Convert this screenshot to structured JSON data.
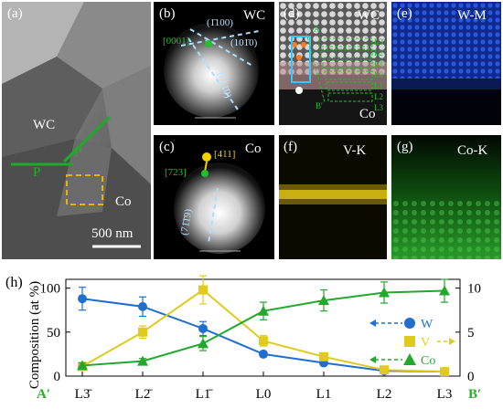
{
  "panels": {
    "a": {
      "tag": "(a)",
      "phase1": "WC",
      "phase2": "Co",
      "plane": "P",
      "plane2": "P",
      "scale": "500 nm"
    },
    "b": {
      "tag": "(b)",
      "phase": "WC",
      "zone": "[0001]",
      "dir1": "(1̄100)",
      "dir2": "(101̄0)",
      "dir3": "(011̄0)"
    },
    "c": {
      "tag": "(c)",
      "phase": "Co",
      "dir_yellow": "[411]",
      "dir_green": "[723]",
      "plane": "(71̄1̄9)"
    },
    "d": {
      "tag": "(d)",
      "phase1": "WC",
      "phase2": "Co",
      "pointA": "A",
      "pointB": "B'",
      "layers": [
        "L3̄",
        "L2̄",
        "L1̄",
        "L0",
        "L1",
        "L2",
        "L3"
      ]
    },
    "e": {
      "tag": "(e)",
      "title": "W-M"
    },
    "f": {
      "tag": "(f)",
      "title": "V-K"
    },
    "g": {
      "tag": "(g)",
      "title": "Co-K"
    },
    "h": {
      "tag": "(h)",
      "start": "A′",
      "end": "B′"
    }
  },
  "colors": {
    "w": "#1f6fd1",
    "v": "#e0cb1c",
    "co": "#22a82c",
    "green_label": "#22b022"
  },
  "chart_data": {
    "type": "line",
    "ylabel": "Composition (at %)",
    "categories": [
      "L3̄",
      "L2̄",
      "L1̄",
      "L0",
      "L1",
      "L2",
      "L3"
    ],
    "ylim_left": [
      0,
      110
    ],
    "ylim_right": [
      0,
      11
    ],
    "yticks_left": [
      0,
      50,
      100
    ],
    "yticks_right": [
      0,
      5,
      10
    ],
    "series": [
      {
        "name": "W",
        "axis": "left",
        "marker": "circle",
        "color": "#1f6fd1",
        "values": [
          88,
          79,
          54,
          25,
          15,
          6,
          5
        ],
        "errors": [
          13,
          11,
          8,
          3,
          2,
          1,
          1
        ]
      },
      {
        "name": "V",
        "axis": "right",
        "marker": "square",
        "color": "#e0cb1c",
        "values": [
          1.1,
          5.0,
          9.8,
          4.0,
          2.2,
          0.7,
          0.5
        ],
        "errors": [
          0.3,
          0.7,
          1.6,
          0.6,
          0.4,
          0.2,
          0.2
        ]
      },
      {
        "name": "Co",
        "axis": "left",
        "marker": "triangle",
        "color": "#22a82c",
        "values": [
          12,
          17,
          37,
          74,
          86,
          95,
          97
        ],
        "errors": [
          3,
          3,
          8,
          10,
          12,
          12,
          13
        ]
      }
    ]
  }
}
